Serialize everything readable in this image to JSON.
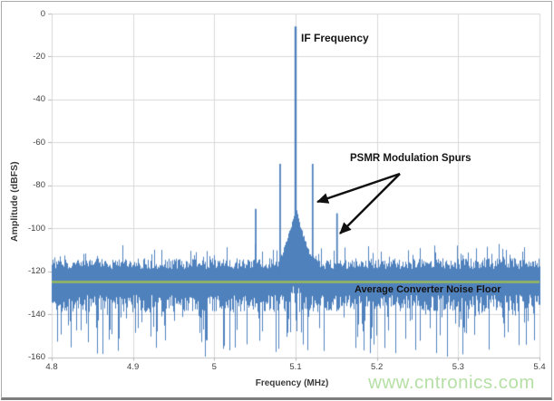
{
  "watermark": "www.cntronics.com",
  "annotations": {
    "if_frequency": "IF Frequency",
    "psmr_spurs": "PSMR Modulation Spurs",
    "noise_floor": "Average Converter Noise Floor"
  },
  "chart_data": {
    "type": "line",
    "title": "",
    "xlabel": "Frequency (MHz)",
    "ylabel": "Amplitude (dBFS)",
    "xlim": [
      4.8,
      5.4
    ],
    "ylim": [
      -160,
      0
    ],
    "x_ticks": [
      4.8,
      4.9,
      5,
      5.1,
      5.2,
      5.3,
      5.4
    ],
    "x_tick_labels": [
      "4.8",
      "4.9",
      "5",
      "5.1",
      "5.2",
      "5.3",
      "5.4"
    ],
    "y_ticks": [
      0,
      -20,
      -40,
      -60,
      -80,
      -100,
      -120,
      -140,
      -160
    ],
    "y_tick_labels": [
      "0",
      "-20",
      "-40",
      "-60",
      "-80",
      "-100",
      "-120",
      "-140",
      "-160"
    ],
    "grid": true,
    "series_color": "#4f81bd",
    "gridline_color": "#d9d9d9",
    "peaks": [
      {
        "freq_mhz": 5.1,
        "amplitude_dbfs": -6,
        "label": "IF Frequency"
      },
      {
        "freq_mhz": 5.051,
        "amplitude_dbfs": -91,
        "label": "PSMR modulation spur"
      },
      {
        "freq_mhz": 5.081,
        "amplitude_dbfs": -70,
        "label": "PSMR modulation spur"
      },
      {
        "freq_mhz": 5.121,
        "amplitude_dbfs": -70,
        "label": "PSMR modulation spur"
      },
      {
        "freq_mhz": 5.151,
        "amplitude_dbfs": -93,
        "label": "PSMR modulation spur"
      }
    ],
    "noise_floor_line": {
      "amplitude_dbfs": -125,
      "color": "#9bbb59",
      "label": "Average Converter Noise Floor"
    },
    "noise": {
      "mean_dbfs": -125,
      "band_top_dbfs": -114,
      "band_bottom_dbfs": -137,
      "spike_min_dbfs": -160,
      "spike_max_dbfs": -107,
      "skirt": {
        "center_mhz": 5.1,
        "peak_dbfs": -88,
        "half_width_mhz": 0.021
      }
    }
  }
}
